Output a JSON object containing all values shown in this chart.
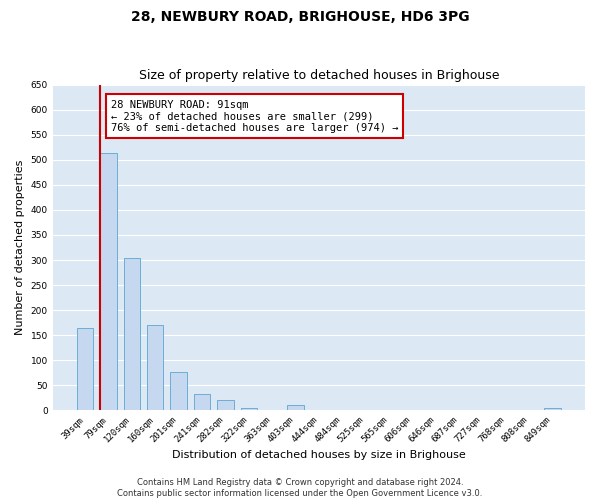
{
  "title": "28, NEWBURY ROAD, BRIGHOUSE, HD6 3PG",
  "subtitle": "Size of property relative to detached houses in Brighouse",
  "xlabel": "Distribution of detached houses by size in Brighouse",
  "ylabel": "Number of detached properties",
  "categories": [
    "39sqm",
    "79sqm",
    "120sqm",
    "160sqm",
    "201sqm",
    "241sqm",
    "282sqm",
    "322sqm",
    "363sqm",
    "403sqm",
    "444sqm",
    "484sqm",
    "525sqm",
    "565sqm",
    "606sqm",
    "646sqm",
    "687sqm",
    "727sqm",
    "768sqm",
    "808sqm",
    "849sqm"
  ],
  "values": [
    165,
    513,
    305,
    170,
    76,
    32,
    20,
    5,
    0,
    10,
    0,
    0,
    0,
    0,
    0,
    0,
    0,
    0,
    0,
    0,
    5
  ],
  "bar_color": "#c5d8f0",
  "bar_edge_color": "#6baed6",
  "vline_x_index": 1,
  "vline_color": "#cc0000",
  "annotation_text": "28 NEWBURY ROAD: 91sqm\n← 23% of detached houses are smaller (299)\n76% of semi-detached houses are larger (974) →",
  "annotation_box_color": "#ffffff",
  "annotation_box_edge_color": "#cc0000",
  "ylim": [
    0,
    650
  ],
  "yticks": [
    0,
    50,
    100,
    150,
    200,
    250,
    300,
    350,
    400,
    450,
    500,
    550,
    600,
    650
  ],
  "fig_bg_color": "#ffffff",
  "plot_bg_color": "#dce9f5",
  "grid_color": "#ffffff",
  "footer_line1": "Contains HM Land Registry data © Crown copyright and database right 2024.",
  "footer_line2": "Contains public sector information licensed under the Open Government Licence v3.0.",
  "title_fontsize": 10,
  "subtitle_fontsize": 9,
  "axis_label_fontsize": 8,
  "tick_fontsize": 6.5,
  "annotation_fontsize": 7.5,
  "footer_fontsize": 6,
  "bar_width": 0.7
}
